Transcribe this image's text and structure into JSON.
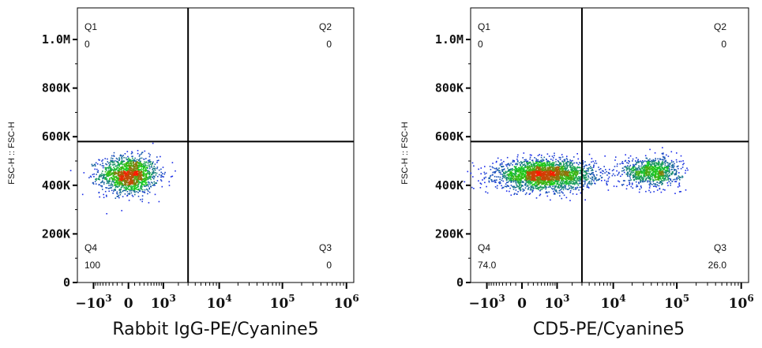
{
  "chart_data": [
    {
      "type": "scatter",
      "subtype": "flow-cytometry-density-plot",
      "xlabel": "Rabbit IgG-PE/Cyanine5",
      "ylabel": "FSC-H :: FSC-H",
      "x_scale": "biexponential",
      "x_ticks": [
        {
          "base": "−10",
          "exp": "3"
        },
        {
          "base": "0",
          "exp": ""
        },
        {
          "base": "10",
          "exp": "3"
        },
        {
          "base": "10",
          "exp": "4"
        },
        {
          "base": "10",
          "exp": "5"
        },
        {
          "base": "10",
          "exp": "6"
        }
      ],
      "y_ticks": [
        "0",
        "200K",
        "400K",
        "600K",
        "800K",
        "1.0M"
      ],
      "y_tick_values": [
        0,
        200000,
        400000,
        600000,
        800000,
        1000000
      ],
      "ylim": [
        0,
        1130000
      ],
      "gate": {
        "x": 3000,
        "y": 580000
      },
      "quadrants": [
        {
          "name": "Q1",
          "value": "0",
          "pos": "top-left"
        },
        {
          "name": "Q2",
          "value": "0",
          "pos": "top-right"
        },
        {
          "name": "Q3",
          "value": "0",
          "pos": "bottom-right"
        },
        {
          "name": "Q4",
          "value": "100",
          "pos": "bottom-left"
        }
      ],
      "populations": [
        {
          "x_center": 0,
          "x_spread_decades": 0.45,
          "y_center": 445000,
          "y_spread": 38000,
          "count": 1500
        }
      ]
    },
    {
      "type": "scatter",
      "subtype": "flow-cytometry-density-plot",
      "xlabel": "CD5-PE/Cyanine5",
      "ylabel": "FSC-H :: FSC-H",
      "x_scale": "biexponential",
      "x_ticks": [
        {
          "base": "−10",
          "exp": "3"
        },
        {
          "base": "0",
          "exp": ""
        },
        {
          "base": "10",
          "exp": "3"
        },
        {
          "base": "10",
          "exp": "4"
        },
        {
          "base": "10",
          "exp": "5"
        },
        {
          "base": "10",
          "exp": "6"
        }
      ],
      "y_ticks": [
        "0",
        "200K",
        "400K",
        "600K",
        "800K",
        "1.0M"
      ],
      "y_tick_values": [
        0,
        200000,
        400000,
        600000,
        800000,
        1000000
      ],
      "ylim": [
        0,
        1130000
      ],
      "gate": {
        "x": 3000,
        "y": 580000
      },
      "quadrants": [
        {
          "name": "Q1",
          "value": "0",
          "pos": "top-left"
        },
        {
          "name": "Q2",
          "value": "0",
          "pos": "top-right"
        },
        {
          "name": "Q3",
          "value": "26.0",
          "pos": "bottom-right"
        },
        {
          "name": "Q4",
          "value": "74.0",
          "pos": "bottom-left"
        }
      ],
      "populations": [
        {
          "x_center": 500,
          "x_spread_decades": 0.75,
          "y_center": 445000,
          "y_spread": 30000,
          "count": 2600
        },
        {
          "x_center": 40000,
          "x_spread_decades": 0.45,
          "y_center": 458000,
          "y_spread": 30000,
          "count": 900
        }
      ]
    }
  ],
  "colors": {
    "axis": "#000000",
    "density_low": "#1a1aff",
    "density_mid": "#18d018",
    "density_high": "#ff1a00"
  }
}
